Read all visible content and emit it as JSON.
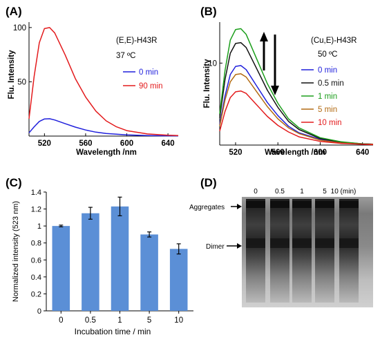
{
  "figure": {
    "panels": [
      {
        "label": "(A)",
        "chart_data": {
          "type": "line",
          "title": "",
          "xlabel": "Wavelength /nm",
          "ylabel": "Flu. Intensity",
          "xlim": [
            505,
            650
          ],
          "ylim": [
            0,
            105
          ],
          "xticks": [
            520,
            560,
            600,
            640
          ],
          "yticks": [
            50,
            100
          ],
          "grid": false,
          "legend_position": "right",
          "annotations": [
            "(E,E)-H43R",
            "37 ºC"
          ],
          "series": [
            {
              "name": "0 min",
              "color": "#1f1fdc",
              "x": [
                505,
                510,
                515,
                520,
                525,
                530,
                540,
                550,
                560,
                570,
                580,
                600,
                620,
                640,
                650
              ],
              "y": [
                3.0,
                8.5,
                13.5,
                15.8,
                16.0,
                14.8,
                11.5,
                8.3,
                5.6,
                3.6,
                2.4,
                1.1,
                0.5,
                0.25,
                0.2
              ]
            },
            {
              "name": "90 min",
              "color": "#e31a1c",
              "x": [
                505,
                510,
                515,
                520,
                525,
                530,
                540,
                550,
                560,
                570,
                580,
                590,
                600,
                620,
                640,
                650
              ],
              "y": [
                16,
                55,
                86,
                99,
                100,
                95,
                75,
                53,
                36,
                23,
                14,
                8.5,
                5,
                2,
                0.8,
                0.5
              ]
            }
          ]
        }
      },
      {
        "label": "(B)",
        "chart_data": {
          "type": "line",
          "title": "",
          "xlabel": "Wavelength /nm",
          "ylabel": "Flu. Intensity",
          "xlim": [
            505,
            650
          ],
          "ylim": [
            0,
            15
          ],
          "xticks": [
            520,
            560,
            600,
            640
          ],
          "yticks": [
            10
          ],
          "grid": false,
          "legend_position": "right",
          "annotations": [
            "(Cu,E)-H43R",
            "50 ºC"
          ],
          "series": [
            {
              "name": "0 min",
              "color": "#1f1fdc",
              "x": [
                505,
                510,
                515,
                520,
                525,
                530,
                540,
                550,
                560,
                570,
                580,
                600,
                620,
                640,
                650
              ],
              "y": [
                2.5,
                6.0,
                8.6,
                9.6,
                9.7,
                9.2,
                7.2,
                5.2,
                3.6,
                2.3,
                1.5,
                0.7,
                0.3,
                0.15,
                0.1
              ]
            },
            {
              "name": "0.5 min",
              "color": "#111111",
              "x": [
                505,
                510,
                515,
                520,
                525,
                530,
                540,
                550,
                560,
                570,
                580,
                600,
                620,
                640,
                650
              ],
              "y": [
                3.3,
                8.0,
                11.2,
                12.4,
                12.5,
                11.9,
                9.3,
                6.7,
                4.6,
                2.9,
                1.9,
                0.8,
                0.35,
                0.15,
                0.1
              ]
            },
            {
              "name": "1 min",
              "color": "#1a9e1a",
              "x": [
                505,
                510,
                515,
                520,
                525,
                530,
                540,
                550,
                560,
                570,
                580,
                600,
                620,
                640,
                650
              ],
              "y": [
                3.8,
                9.1,
                12.8,
                14.1,
                14.2,
                13.5,
                10.5,
                7.5,
                5.1,
                3.2,
                2.1,
                0.9,
                0.4,
                0.15,
                0.1
              ]
            },
            {
              "name": "5 min",
              "color": "#b26a12",
              "x": [
                505,
                510,
                515,
                520,
                525,
                530,
                540,
                550,
                560,
                570,
                580,
                600,
                620,
                640,
                650
              ],
              "y": [
                2.3,
                5.5,
                7.7,
                8.6,
                8.7,
                8.3,
                6.5,
                4.7,
                3.2,
                2.1,
                1.4,
                0.6,
                0.25,
                0.1,
                0.1
              ]
            },
            {
              "name": "10 min",
              "color": "#e31a1c",
              "x": [
                505,
                510,
                515,
                520,
                525,
                530,
                540,
                550,
                560,
                570,
                580,
                600,
                620,
                640,
                650
              ],
              "y": [
                1.7,
                4.1,
                5.8,
                6.5,
                6.6,
                6.3,
                4.9,
                3.5,
                2.4,
                1.6,
                1.0,
                0.45,
                0.2,
                0.1,
                0.05
              ]
            }
          ]
        }
      },
      {
        "label": "(C)",
        "chart_data": {
          "type": "bar",
          "title": "",
          "xlabel": "Incubation time / min",
          "ylabel": "Normalized intensity (523 nm)",
          "ylim": [
            0,
            1.4
          ],
          "yticks": [
            0,
            0.2,
            0.4,
            0.6,
            0.8,
            1,
            1.2,
            1.4
          ],
          "grid": false,
          "categories": [
            "0",
            "0.5",
            "1",
            "5",
            "10"
          ],
          "values": [
            1.0,
            1.15,
            1.23,
            0.9,
            0.73
          ],
          "errors": [
            0.01,
            0.07,
            0.11,
            0.03,
            0.06
          ],
          "color": "#5b8fd6"
        }
      },
      {
        "label": "(D)",
        "gel": {
          "lane_labels": [
            "0",
            "0.5",
            "1",
            "5",
            "10 (min)"
          ],
          "band_labels": [
            "Aggregates",
            "Dimer"
          ]
        }
      }
    ]
  }
}
